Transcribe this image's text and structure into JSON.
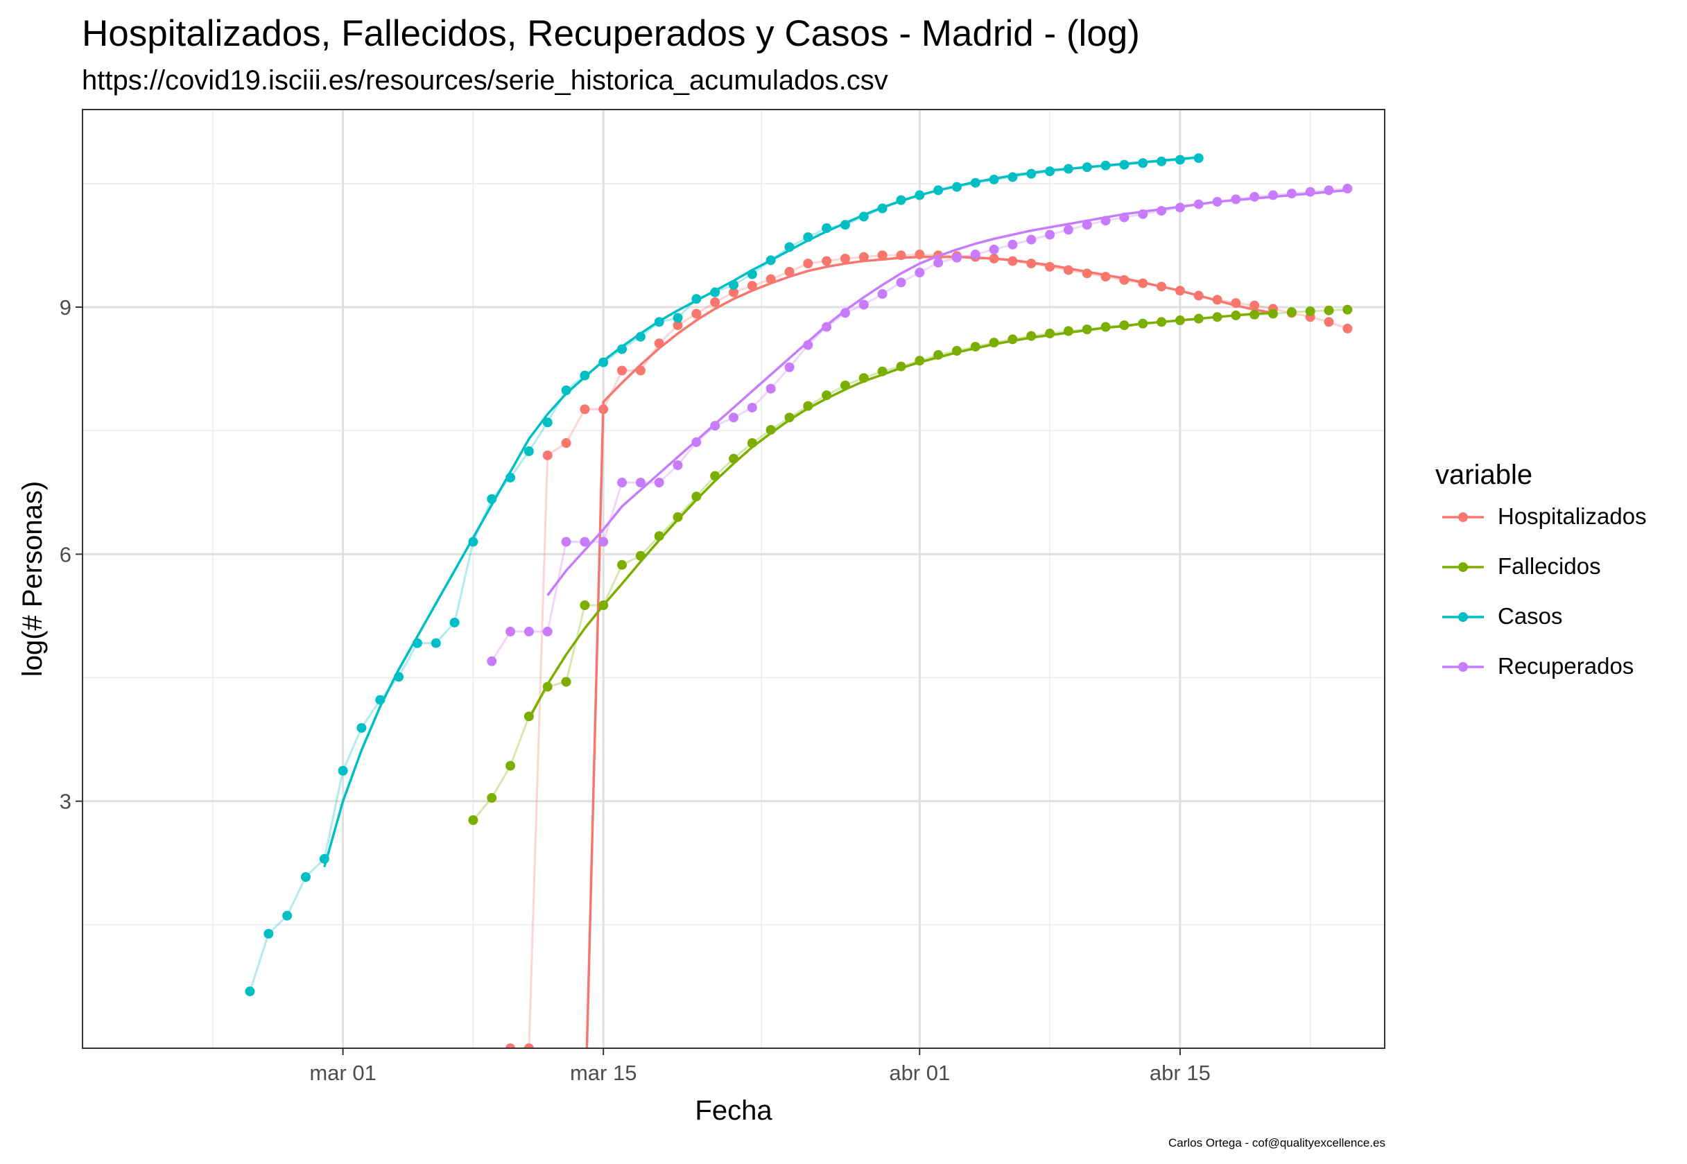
{
  "chart_data": {
    "type": "line",
    "title": "Hospitalizados, Fallecidos, Recuperados y Casos - Madrid - (log)",
    "subtitle": "https://covid19.isciii.es/resources/serie_historica_acumulados.csv",
    "xlabel": "Fecha",
    "ylabel": "log(# Personas)",
    "caption": "Carlos Ortega - cof@qualityexcellence.es",
    "legend_title": "variable",
    "legend_position": "right",
    "grid": true,
    "x_ticks": [
      "mar 01",
      "mar 15",
      "abr 01",
      "abr 15"
    ],
    "x_tick_dates": [
      "2020-03-01",
      "2020-03-15",
      "2020-04-01",
      "2020-04-15"
    ],
    "xlim": [
      "2020-02-16",
      "2020-04-26"
    ],
    "y_ticks": [
      "3",
      "6",
      "9"
    ],
    "ylim": [
      0,
      11.4
    ],
    "series": [
      {
        "name": "Hospitalizados",
        "color": "#F8766D",
        "x": [
          "2020-03-10",
          "2020-03-11",
          "2020-03-12",
          "2020-03-13",
          "2020-03-14",
          "2020-03-15",
          "2020-03-16",
          "2020-03-17",
          "2020-03-18",
          "2020-03-19",
          "2020-03-20",
          "2020-03-21",
          "2020-03-22",
          "2020-03-23",
          "2020-03-24",
          "2020-03-25",
          "2020-03-26",
          "2020-03-27",
          "2020-03-28",
          "2020-03-29",
          "2020-03-30",
          "2020-03-31",
          "2020-04-01",
          "2020-04-02",
          "2020-04-03",
          "2020-04-04",
          "2020-04-05",
          "2020-04-06",
          "2020-04-07",
          "2020-04-08",
          "2020-04-09",
          "2020-04-10",
          "2020-04-11",
          "2020-04-12",
          "2020-04-13",
          "2020-04-14",
          "2020-04-15",
          "2020-04-16",
          "2020-04-17",
          "2020-04-18",
          "2020-04-19",
          "2020-04-20",
          "2020-04-21",
          "2020-04-22",
          "2020-04-23",
          "2020-04-24"
        ],
        "y": [
          0,
          0,
          7.2,
          7.35,
          7.76,
          7.76,
          8.23,
          8.23,
          8.56,
          8.78,
          8.92,
          9.06,
          9.18,
          9.26,
          9.34,
          9.43,
          9.53,
          9.56,
          9.59,
          9.61,
          9.63,
          9.63,
          9.64,
          9.63,
          9.62,
          9.61,
          9.59,
          9.56,
          9.53,
          9.49,
          9.45,
          9.41,
          9.37,
          9.33,
          9.29,
          9.25,
          9.2,
          9.14,
          9.09,
          9.05,
          9.02,
          8.98,
          8.93,
          8.88,
          8.82,
          8.74
        ],
        "smooth_x": [
          "2020-03-14",
          "2020-03-15",
          "2020-03-16",
          "2020-03-17",
          "2020-03-18",
          "2020-03-19",
          "2020-03-20",
          "2020-03-21",
          "2020-03-22",
          "2020-03-23",
          "2020-03-24",
          "2020-03-25",
          "2020-03-26",
          "2020-03-27",
          "2020-03-28",
          "2020-03-29",
          "2020-03-30",
          "2020-03-31",
          "2020-04-01",
          "2020-04-02",
          "2020-04-03",
          "2020-04-04",
          "2020-04-05",
          "2020-04-06",
          "2020-04-07",
          "2020-04-08",
          "2020-04-09",
          "2020-04-10",
          "2020-04-11",
          "2020-04-12",
          "2020-04-13",
          "2020-04-14",
          "2020-04-15",
          "2020-04-16",
          "2020-04-17",
          "2020-04-18",
          "2020-04-19",
          "2020-04-20"
        ],
        "smooth_y": [
          -1,
          7.85,
          8.08,
          8.3,
          8.5,
          8.68,
          8.84,
          8.98,
          9.1,
          9.2,
          9.29,
          9.37,
          9.44,
          9.49,
          9.53,
          9.56,
          9.58,
          9.6,
          9.61,
          9.61,
          9.61,
          9.6,
          9.59,
          9.57,
          9.54,
          9.51,
          9.47,
          9.43,
          9.39,
          9.35,
          9.3,
          9.25,
          9.2,
          9.14,
          9.08,
          9.02,
          8.97,
          8.93
        ]
      },
      {
        "name": "Fallecidos",
        "color": "#7CAE00",
        "x": [
          "2020-03-08",
          "2020-03-09",
          "2020-03-10",
          "2020-03-11",
          "2020-03-12",
          "2020-03-13",
          "2020-03-14",
          "2020-03-15",
          "2020-03-16",
          "2020-03-17",
          "2020-03-18",
          "2020-03-19",
          "2020-03-20",
          "2020-03-21",
          "2020-03-22",
          "2020-03-23",
          "2020-03-24",
          "2020-03-25",
          "2020-03-26",
          "2020-03-27",
          "2020-03-28",
          "2020-03-29",
          "2020-03-30",
          "2020-03-31",
          "2020-04-01",
          "2020-04-02",
          "2020-04-03",
          "2020-04-04",
          "2020-04-05",
          "2020-04-06",
          "2020-04-07",
          "2020-04-08",
          "2020-04-09",
          "2020-04-10",
          "2020-04-11",
          "2020-04-12",
          "2020-04-13",
          "2020-04-14",
          "2020-04-15",
          "2020-04-16",
          "2020-04-17",
          "2020-04-18",
          "2020-04-19",
          "2020-04-20",
          "2020-04-21",
          "2020-04-22",
          "2020-04-23",
          "2020-04-24"
        ],
        "y": [
          2.77,
          3.04,
          3.43,
          4.03,
          4.39,
          4.45,
          5.38,
          5.38,
          5.87,
          5.98,
          6.22,
          6.45,
          6.7,
          6.95,
          7.16,
          7.35,
          7.51,
          7.66,
          7.8,
          7.93,
          8.05,
          8.14,
          8.22,
          8.28,
          8.35,
          8.42,
          8.47,
          8.52,
          8.57,
          8.61,
          8.65,
          8.68,
          8.71,
          8.73,
          8.76,
          8.78,
          8.8,
          8.82,
          8.84,
          8.86,
          8.88,
          8.9,
          8.91,
          8.92,
          8.94,
          8.95,
          8.96,
          8.97
        ],
        "smooth_x": [
          "2020-03-11",
          "2020-03-12",
          "2020-03-13",
          "2020-03-14",
          "2020-03-15",
          "2020-03-16",
          "2020-03-17",
          "2020-03-18",
          "2020-03-19",
          "2020-03-20",
          "2020-03-21",
          "2020-03-22",
          "2020-03-23",
          "2020-03-24",
          "2020-03-25",
          "2020-03-26",
          "2020-03-27",
          "2020-03-28",
          "2020-03-29",
          "2020-03-30",
          "2020-03-31",
          "2020-04-01",
          "2020-04-02",
          "2020-04-03",
          "2020-04-04",
          "2020-04-05",
          "2020-04-06",
          "2020-04-07",
          "2020-04-08",
          "2020-04-09",
          "2020-04-10",
          "2020-04-11",
          "2020-04-12",
          "2020-04-13",
          "2020-04-14",
          "2020-04-15",
          "2020-04-16",
          "2020-04-17",
          "2020-04-18",
          "2020-04-19",
          "2020-04-20"
        ],
        "smooth_y": [
          4.0,
          4.42,
          4.78,
          5.1,
          5.38,
          5.64,
          5.91,
          6.17,
          6.42,
          6.66,
          6.89,
          7.1,
          7.3,
          7.47,
          7.63,
          7.77,
          7.89,
          8.0,
          8.1,
          8.18,
          8.26,
          8.33,
          8.39,
          8.45,
          8.5,
          8.55,
          8.59,
          8.63,
          8.66,
          8.69,
          8.72,
          8.75,
          8.77,
          8.8,
          8.82,
          8.84,
          8.86,
          8.88,
          8.9,
          8.92,
          8.93
        ]
      },
      {
        "name": "Casos",
        "color": "#00BFC4",
        "x": [
          "2020-02-25",
          "2020-02-26",
          "2020-02-27",
          "2020-02-28",
          "2020-02-29",
          "2020-03-01",
          "2020-03-02",
          "2020-03-03",
          "2020-03-04",
          "2020-03-05",
          "2020-03-06",
          "2020-03-07",
          "2020-03-08",
          "2020-03-09",
          "2020-03-10",
          "2020-03-11",
          "2020-03-12",
          "2020-03-13",
          "2020-03-14",
          "2020-03-15",
          "2020-03-16",
          "2020-03-17",
          "2020-03-18",
          "2020-03-19",
          "2020-03-20",
          "2020-03-21",
          "2020-03-22",
          "2020-03-23",
          "2020-03-24",
          "2020-03-25",
          "2020-03-26",
          "2020-03-27",
          "2020-03-28",
          "2020-03-29",
          "2020-03-30",
          "2020-03-31",
          "2020-04-01",
          "2020-04-02",
          "2020-04-03",
          "2020-04-04",
          "2020-04-05",
          "2020-04-06",
          "2020-04-07",
          "2020-04-08",
          "2020-04-09",
          "2020-04-10",
          "2020-04-11",
          "2020-04-12",
          "2020-04-13",
          "2020-04-14",
          "2020-04-15",
          "2020-04-16"
        ],
        "y": [
          0.69,
          1.39,
          1.61,
          2.08,
          2.3,
          3.37,
          3.89,
          4.23,
          4.51,
          4.92,
          4.92,
          5.17,
          6.15,
          6.67,
          6.93,
          7.25,
          7.6,
          7.99,
          8.17,
          8.33,
          8.49,
          8.64,
          8.82,
          8.87,
          9.1,
          9.18,
          9.27,
          9.4,
          9.57,
          9.73,
          9.85,
          9.96,
          10.0,
          10.1,
          10.2,
          10.3,
          10.36,
          10.42,
          10.46,
          10.51,
          10.55,
          10.58,
          10.62,
          10.65,
          10.68,
          10.7,
          10.72,
          10.73,
          10.75,
          10.77,
          10.79,
          10.81
        ],
        "smooth_x": [
          "2020-02-29",
          "2020-03-01",
          "2020-03-02",
          "2020-03-03",
          "2020-03-04",
          "2020-03-05",
          "2020-03-06",
          "2020-03-07",
          "2020-03-08",
          "2020-03-09",
          "2020-03-10",
          "2020-03-11",
          "2020-03-12",
          "2020-03-13",
          "2020-03-14",
          "2020-03-15",
          "2020-03-16",
          "2020-03-17",
          "2020-03-18",
          "2020-03-19",
          "2020-03-20",
          "2020-03-21",
          "2020-03-22",
          "2020-03-23",
          "2020-03-24",
          "2020-03-25",
          "2020-03-26",
          "2020-03-27",
          "2020-03-28",
          "2020-03-29",
          "2020-03-30",
          "2020-03-31",
          "2020-04-01",
          "2020-04-02",
          "2020-04-03",
          "2020-04-04",
          "2020-04-05",
          "2020-04-06",
          "2020-04-07",
          "2020-04-08",
          "2020-04-09",
          "2020-04-10",
          "2020-04-11",
          "2020-04-12",
          "2020-04-13",
          "2020-04-14",
          "2020-04-15",
          "2020-04-16"
        ],
        "smooth_y": [
          2.2,
          3.0,
          3.62,
          4.15,
          4.6,
          5.0,
          5.4,
          5.8,
          6.2,
          6.6,
          7.0,
          7.4,
          7.7,
          7.95,
          8.15,
          8.35,
          8.52,
          8.68,
          8.83,
          8.96,
          9.08,
          9.2,
          9.32,
          9.45,
          9.57,
          9.69,
          9.81,
          9.92,
          10.02,
          10.12,
          10.21,
          10.29,
          10.36,
          10.42,
          10.47,
          10.52,
          10.56,
          10.6,
          10.63,
          10.66,
          10.68,
          10.7,
          10.72,
          10.74,
          10.76,
          10.78,
          10.8,
          10.82
        ]
      },
      {
        "name": "Recuperados",
        "color": "#C77CFF",
        "x": [
          "2020-03-09",
          "2020-03-10",
          "2020-03-11",
          "2020-03-12",
          "2020-03-13",
          "2020-03-14",
          "2020-03-15",
          "2020-03-16",
          "2020-03-17",
          "2020-03-18",
          "2020-03-19",
          "2020-03-20",
          "2020-03-21",
          "2020-03-22",
          "2020-03-23",
          "2020-03-24",
          "2020-03-25",
          "2020-03-26",
          "2020-03-27",
          "2020-03-28",
          "2020-03-29",
          "2020-03-30",
          "2020-03-31",
          "2020-04-01",
          "2020-04-02",
          "2020-04-03",
          "2020-04-04",
          "2020-04-05",
          "2020-04-06",
          "2020-04-07",
          "2020-04-08",
          "2020-04-09",
          "2020-04-10",
          "2020-04-11",
          "2020-04-12",
          "2020-04-13",
          "2020-04-14",
          "2020-04-15",
          "2020-04-16",
          "2020-04-17",
          "2020-04-18",
          "2020-04-19",
          "2020-04-20",
          "2020-04-21",
          "2020-04-22",
          "2020-04-23",
          "2020-04-24"
        ],
        "y": [
          4.7,
          5.06,
          5.06,
          5.06,
          6.15,
          6.15,
          6.15,
          6.87,
          6.87,
          6.87,
          7.08,
          7.36,
          7.56,
          7.66,
          7.78,
          8.01,
          8.27,
          8.54,
          8.76,
          8.93,
          9.03,
          9.16,
          9.3,
          9.42,
          9.54,
          9.6,
          9.64,
          9.7,
          9.76,
          9.82,
          9.88,
          9.94,
          10.0,
          10.05,
          10.09,
          10.13,
          10.17,
          10.21,
          10.25,
          10.28,
          10.31,
          10.34,
          10.36,
          10.38,
          10.4,
          10.42,
          10.44
        ],
        "smooth_x": [
          "2020-03-12",
          "2020-03-13",
          "2020-03-14",
          "2020-03-15",
          "2020-03-16",
          "2020-03-17",
          "2020-03-18",
          "2020-03-19",
          "2020-03-20",
          "2020-03-21",
          "2020-03-22",
          "2020-03-23",
          "2020-03-24",
          "2020-03-25",
          "2020-03-26",
          "2020-03-27",
          "2020-03-28",
          "2020-03-29",
          "2020-03-30",
          "2020-03-31",
          "2020-04-01",
          "2020-04-02",
          "2020-04-03",
          "2020-04-04",
          "2020-04-05",
          "2020-04-06",
          "2020-04-07",
          "2020-04-08",
          "2020-04-09",
          "2020-04-10",
          "2020-04-11",
          "2020-04-12",
          "2020-04-13",
          "2020-04-14",
          "2020-04-15",
          "2020-04-16",
          "2020-04-17",
          "2020-04-18",
          "2020-04-19",
          "2020-04-20",
          "2020-04-21",
          "2020-04-22",
          "2020-04-23",
          "2020-04-24"
        ],
        "smooth_y": [
          5.5,
          5.8,
          6.05,
          6.3,
          6.58,
          6.78,
          6.98,
          7.18,
          7.38,
          7.58,
          7.78,
          7.98,
          8.18,
          8.38,
          8.58,
          8.78,
          8.96,
          9.12,
          9.27,
          9.41,
          9.53,
          9.62,
          9.7,
          9.77,
          9.83,
          9.88,
          9.93,
          9.97,
          10.01,
          10.05,
          10.09,
          10.13,
          10.16,
          10.19,
          10.22,
          10.25,
          10.28,
          10.3,
          10.32,
          10.34,
          10.36,
          10.38,
          10.4,
          10.42
        ]
      }
    ]
  }
}
